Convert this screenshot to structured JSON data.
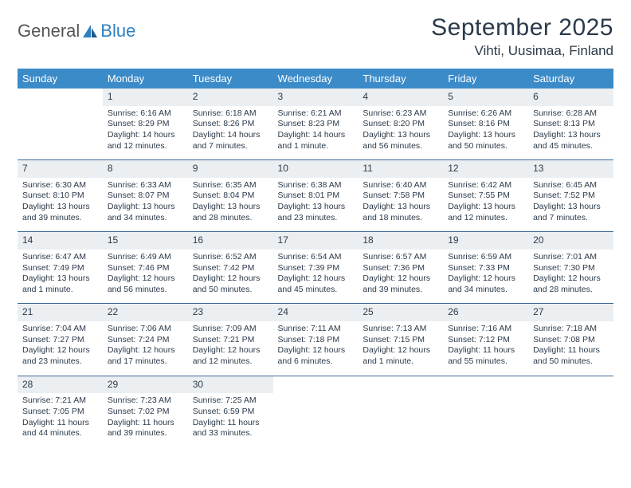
{
  "brand": {
    "part1": "General",
    "part2": "Blue"
  },
  "title": "September 2025",
  "location": "Vihti, Uusimaa, Finland",
  "colors": {
    "header_bg": "#3b8bc9",
    "header_text": "#ffffff",
    "daynum_bg": "#eceff2",
    "rule": "#3b6a9a",
    "text": "#2b3a4a",
    "brand_blue": "#2f7fbf"
  },
  "weekdays": [
    "Sunday",
    "Monday",
    "Tuesday",
    "Wednesday",
    "Thursday",
    "Friday",
    "Saturday"
  ],
  "weeks": [
    [
      null,
      {
        "n": "1",
        "sr": "Sunrise: 6:16 AM",
        "ss": "Sunset: 8:29 PM",
        "d1": "Daylight: 14 hours",
        "d2": "and 12 minutes."
      },
      {
        "n": "2",
        "sr": "Sunrise: 6:18 AM",
        "ss": "Sunset: 8:26 PM",
        "d1": "Daylight: 14 hours",
        "d2": "and 7 minutes."
      },
      {
        "n": "3",
        "sr": "Sunrise: 6:21 AM",
        "ss": "Sunset: 8:23 PM",
        "d1": "Daylight: 14 hours",
        "d2": "and 1 minute."
      },
      {
        "n": "4",
        "sr": "Sunrise: 6:23 AM",
        "ss": "Sunset: 8:20 PM",
        "d1": "Daylight: 13 hours",
        "d2": "and 56 minutes."
      },
      {
        "n": "5",
        "sr": "Sunrise: 6:26 AM",
        "ss": "Sunset: 8:16 PM",
        "d1": "Daylight: 13 hours",
        "d2": "and 50 minutes."
      },
      {
        "n": "6",
        "sr": "Sunrise: 6:28 AM",
        "ss": "Sunset: 8:13 PM",
        "d1": "Daylight: 13 hours",
        "d2": "and 45 minutes."
      }
    ],
    [
      {
        "n": "7",
        "sr": "Sunrise: 6:30 AM",
        "ss": "Sunset: 8:10 PM",
        "d1": "Daylight: 13 hours",
        "d2": "and 39 minutes."
      },
      {
        "n": "8",
        "sr": "Sunrise: 6:33 AM",
        "ss": "Sunset: 8:07 PM",
        "d1": "Daylight: 13 hours",
        "d2": "and 34 minutes."
      },
      {
        "n": "9",
        "sr": "Sunrise: 6:35 AM",
        "ss": "Sunset: 8:04 PM",
        "d1": "Daylight: 13 hours",
        "d2": "and 28 minutes."
      },
      {
        "n": "10",
        "sr": "Sunrise: 6:38 AM",
        "ss": "Sunset: 8:01 PM",
        "d1": "Daylight: 13 hours",
        "d2": "and 23 minutes."
      },
      {
        "n": "11",
        "sr": "Sunrise: 6:40 AM",
        "ss": "Sunset: 7:58 PM",
        "d1": "Daylight: 13 hours",
        "d2": "and 18 minutes."
      },
      {
        "n": "12",
        "sr": "Sunrise: 6:42 AM",
        "ss": "Sunset: 7:55 PM",
        "d1": "Daylight: 13 hours",
        "d2": "and 12 minutes."
      },
      {
        "n": "13",
        "sr": "Sunrise: 6:45 AM",
        "ss": "Sunset: 7:52 PM",
        "d1": "Daylight: 13 hours",
        "d2": "and 7 minutes."
      }
    ],
    [
      {
        "n": "14",
        "sr": "Sunrise: 6:47 AM",
        "ss": "Sunset: 7:49 PM",
        "d1": "Daylight: 13 hours",
        "d2": "and 1 minute."
      },
      {
        "n": "15",
        "sr": "Sunrise: 6:49 AM",
        "ss": "Sunset: 7:46 PM",
        "d1": "Daylight: 12 hours",
        "d2": "and 56 minutes."
      },
      {
        "n": "16",
        "sr": "Sunrise: 6:52 AM",
        "ss": "Sunset: 7:42 PM",
        "d1": "Daylight: 12 hours",
        "d2": "and 50 minutes."
      },
      {
        "n": "17",
        "sr": "Sunrise: 6:54 AM",
        "ss": "Sunset: 7:39 PM",
        "d1": "Daylight: 12 hours",
        "d2": "and 45 minutes."
      },
      {
        "n": "18",
        "sr": "Sunrise: 6:57 AM",
        "ss": "Sunset: 7:36 PM",
        "d1": "Daylight: 12 hours",
        "d2": "and 39 minutes."
      },
      {
        "n": "19",
        "sr": "Sunrise: 6:59 AM",
        "ss": "Sunset: 7:33 PM",
        "d1": "Daylight: 12 hours",
        "d2": "and 34 minutes."
      },
      {
        "n": "20",
        "sr": "Sunrise: 7:01 AM",
        "ss": "Sunset: 7:30 PM",
        "d1": "Daylight: 12 hours",
        "d2": "and 28 minutes."
      }
    ],
    [
      {
        "n": "21",
        "sr": "Sunrise: 7:04 AM",
        "ss": "Sunset: 7:27 PM",
        "d1": "Daylight: 12 hours",
        "d2": "and 23 minutes."
      },
      {
        "n": "22",
        "sr": "Sunrise: 7:06 AM",
        "ss": "Sunset: 7:24 PM",
        "d1": "Daylight: 12 hours",
        "d2": "and 17 minutes."
      },
      {
        "n": "23",
        "sr": "Sunrise: 7:09 AM",
        "ss": "Sunset: 7:21 PM",
        "d1": "Daylight: 12 hours",
        "d2": "and 12 minutes."
      },
      {
        "n": "24",
        "sr": "Sunrise: 7:11 AM",
        "ss": "Sunset: 7:18 PM",
        "d1": "Daylight: 12 hours",
        "d2": "and 6 minutes."
      },
      {
        "n": "25",
        "sr": "Sunrise: 7:13 AM",
        "ss": "Sunset: 7:15 PM",
        "d1": "Daylight: 12 hours",
        "d2": "and 1 minute."
      },
      {
        "n": "26",
        "sr": "Sunrise: 7:16 AM",
        "ss": "Sunset: 7:12 PM",
        "d1": "Daylight: 11 hours",
        "d2": "and 55 minutes."
      },
      {
        "n": "27",
        "sr": "Sunrise: 7:18 AM",
        "ss": "Sunset: 7:08 PM",
        "d1": "Daylight: 11 hours",
        "d2": "and 50 minutes."
      }
    ],
    [
      {
        "n": "28",
        "sr": "Sunrise: 7:21 AM",
        "ss": "Sunset: 7:05 PM",
        "d1": "Daylight: 11 hours",
        "d2": "and 44 minutes."
      },
      {
        "n": "29",
        "sr": "Sunrise: 7:23 AM",
        "ss": "Sunset: 7:02 PM",
        "d1": "Daylight: 11 hours",
        "d2": "and 39 minutes."
      },
      {
        "n": "30",
        "sr": "Sunrise: 7:25 AM",
        "ss": "Sunset: 6:59 PM",
        "d1": "Daylight: 11 hours",
        "d2": "and 33 minutes."
      },
      null,
      null,
      null,
      null
    ]
  ]
}
